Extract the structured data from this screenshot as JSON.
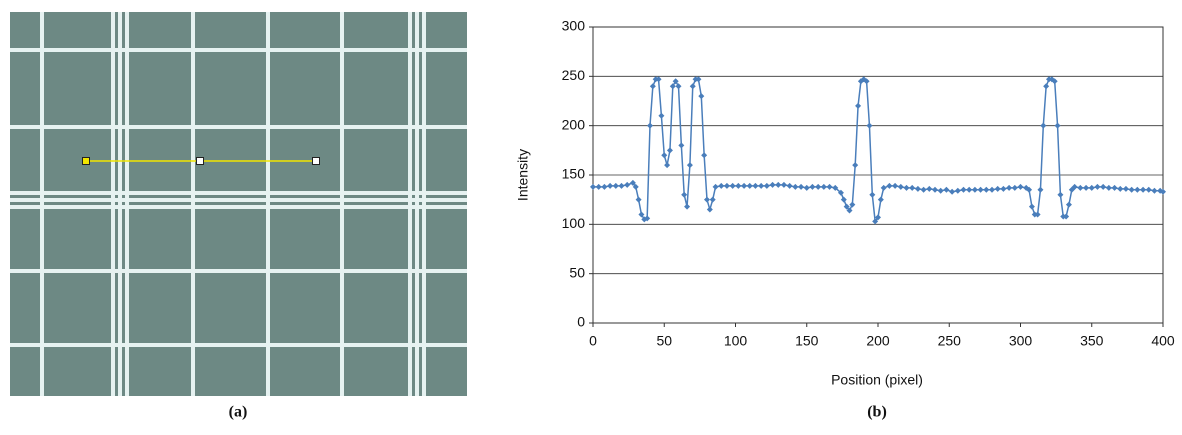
{
  "figure_a": {
    "caption": "(a)"
  },
  "chart_data": {
    "type": "line",
    "caption": "(b)",
    "x_label": "Position (pixel)",
    "y_label": "Intensity",
    "color": "#4a7ebb",
    "grid": true,
    "xlim": [
      0,
      400
    ],
    "xticks": [
      0,
      50,
      100,
      150,
      200,
      250,
      300,
      350,
      400
    ],
    "ylim": [
      0,
      300
    ],
    "yticks": [
      0,
      50,
      100,
      150,
      200,
      250,
      300
    ],
    "x": [
      0,
      4,
      8,
      12,
      16,
      20,
      24,
      28,
      30,
      32,
      34,
      36,
      38,
      40,
      42,
      44,
      46,
      48,
      50,
      52,
      54,
      56,
      58,
      60,
      62,
      64,
      66,
      68,
      70,
      72,
      74,
      76,
      78,
      80,
      82,
      84,
      86,
      90,
      94,
      98,
      102,
      106,
      110,
      114,
      118,
      122,
      126,
      130,
      134,
      138,
      142,
      146,
      150,
      154,
      158,
      162,
      166,
      170,
      174,
      176,
      178,
      180,
      182,
      184,
      186,
      188,
      190,
      192,
      194,
      196,
      198,
      200,
      202,
      204,
      208,
      212,
      216,
      220,
      224,
      228,
      232,
      236,
      240,
      244,
      248,
      252,
      256,
      260,
      264,
      268,
      272,
      276,
      280,
      284,
      288,
      292,
      296,
      300,
      304,
      306,
      308,
      310,
      312,
      314,
      316,
      318,
      320,
      322,
      324,
      326,
      328,
      330,
      332,
      334,
      336,
      338,
      342,
      346,
      350,
      354,
      358,
      362,
      366,
      370,
      374,
      378,
      382,
      386,
      390,
      394,
      398,
      400
    ],
    "values": [
      138,
      138,
      138,
      139,
      139,
      139,
      140,
      142,
      138,
      125,
      110,
      105,
      106,
      200,
      240,
      247,
      247,
      210,
      170,
      160,
      175,
      240,
      245,
      240,
      180,
      130,
      118,
      160,
      240,
      247,
      247,
      230,
      170,
      125,
      115,
      125,
      138,
      139,
      139,
      139,
      139,
      139,
      139,
      139,
      139,
      139,
      140,
      140,
      140,
      139,
      138,
      138,
      137,
      138,
      138,
      138,
      138,
      137,
      132,
      125,
      118,
      114,
      120,
      160,
      220,
      245,
      247,
      245,
      200,
      130,
      103,
      107,
      125,
      137,
      139,
      139,
      138,
      137,
      137,
      136,
      135,
      136,
      135,
      134,
      135,
      133,
      134,
      135,
      135,
      135,
      135,
      135,
      135,
      136,
      136,
      137,
      137,
      138,
      137,
      135,
      118,
      110,
      110,
      135,
      200,
      240,
      247,
      247,
      245,
      200,
      130,
      108,
      108,
      120,
      135,
      138,
      137,
      137,
      137,
      138,
      138,
      137,
      137,
      136,
      136,
      135,
      135,
      135,
      135,
      134,
      134,
      133
    ]
  }
}
